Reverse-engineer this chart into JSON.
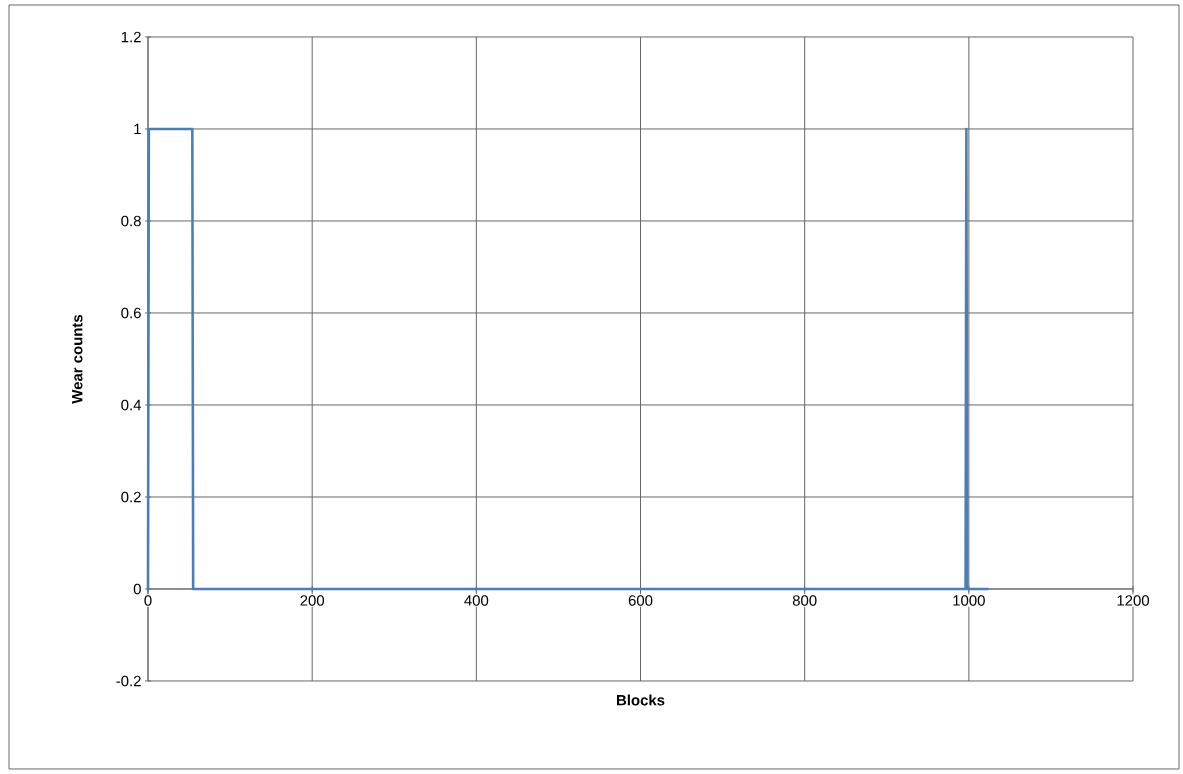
{
  "chart_data": {
    "type": "line",
    "xlabel": "Blocks",
    "ylabel": "Wear counts",
    "x": [
      0,
      1,
      54,
      55,
      996,
      997,
      998,
      1024
    ],
    "series": [
      {
        "color": "#4a7ebb",
        "values": [
          0,
          1,
          1,
          0,
          0,
          1,
          0,
          0
        ]
      }
    ],
    "xlim": [
      0,
      1200
    ],
    "xticks": [
      0,
      200,
      400,
      600,
      800,
      1000,
      1200
    ],
    "ylim": [
      -0.2,
      1.2
    ],
    "yticks": [
      -0.2,
      0,
      0.2,
      0.4,
      0.6,
      0.8,
      1,
      1.2
    ],
    "grid": true,
    "marker": "none"
  }
}
